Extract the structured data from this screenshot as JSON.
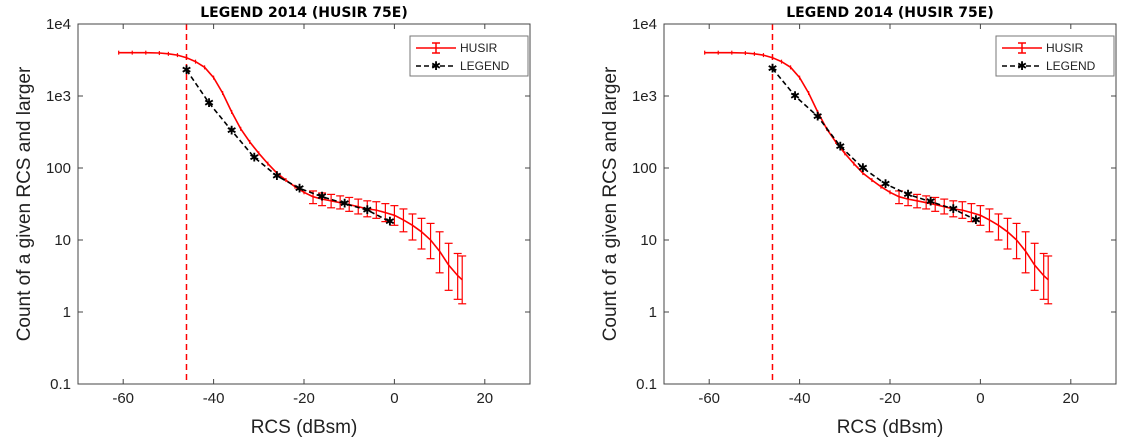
{
  "colors": {
    "husir": "#ff0000",
    "legend": "#000000",
    "cutoff": "#ff0000"
  },
  "chart_data": [
    {
      "type": "line",
      "title": "LEGEND  2014  (HUSIR 75E)",
      "xlabel": "RCS (dBsm)",
      "ylabel": "Count of a given RCS and larger",
      "xlim": [
        -70,
        30
      ],
      "ylim": [
        0.1,
        10000
      ],
      "yscale": "log",
      "xticks": [
        -60,
        -40,
        -20,
        0,
        20
      ],
      "xtick_labels": [
        "-60",
        "-40",
        "-20",
        "0",
        "20"
      ],
      "yticks": [
        0.1,
        1,
        10,
        100,
        1000,
        10000
      ],
      "ytick_labels": [
        "0.1",
        "1",
        "10",
        "100",
        "1e3",
        "1e4"
      ],
      "grid": false,
      "legend_position": "top-right",
      "vline_x": -46,
      "series": [
        {
          "name": "HUSIR",
          "style": "solid-errorbar",
          "x": [
            -61,
            -58,
            -55,
            -52,
            -50,
            -48,
            -46,
            -44,
            -42,
            -40,
            -38,
            -36,
            -34,
            -32,
            -30,
            -28,
            -26,
            -24,
            -22,
            -20,
            -18,
            -16,
            -14,
            -12,
            -10,
            -8,
            -6,
            -4,
            -2,
            0,
            2,
            4,
            6,
            8,
            10,
            12,
            14,
            15
          ],
          "y": [
            4000,
            4000,
            4000,
            3950,
            3850,
            3700,
            3400,
            3000,
            2500,
            1800,
            1100,
            600,
            350,
            230,
            160,
            115,
            85,
            68,
            55,
            46,
            40,
            37,
            35,
            33,
            31,
            29,
            27,
            26,
            24,
            22,
            19,
            16,
            13,
            10,
            7,
            4.5,
            3.2,
            2.8
          ],
          "yerr_lo": [
            4000,
            4000,
            4000,
            3950,
            3850,
            3700,
            3400,
            3000,
            2500,
            1800,
            1100,
            600,
            350,
            230,
            160,
            115,
            85,
            68,
            55,
            46,
            32,
            30,
            28,
            27,
            25,
            23,
            21,
            20,
            18,
            16,
            13,
            10,
            7.5,
            5.5,
            3.5,
            2,
            1.5,
            1.3
          ],
          "yerr_hi": [
            4000,
            4000,
            4000,
            3950,
            3850,
            3700,
            3400,
            3000,
            2500,
            1800,
            1100,
            600,
            350,
            230,
            160,
            115,
            85,
            68,
            55,
            46,
            48,
            45,
            43,
            41,
            39,
            37,
            35,
            34,
            32,
            30,
            27,
            23,
            20,
            17,
            13,
            9,
            6.5,
            6
          ]
        },
        {
          "name": "LEGEND",
          "style": "dashed-star",
          "x": [
            -46,
            -41,
            -36,
            -31,
            -26,
            -21,
            -16,
            -11,
            -6,
            -1
          ],
          "y": [
            2300,
            800,
            330,
            140,
            78,
            52,
            40,
            32,
            26,
            18
          ]
        }
      ]
    },
    {
      "type": "line",
      "title": "LEGEND  2014  (HUSIR 75E)",
      "xlabel": "RCS (dBsm)",
      "ylabel": "Count of a given RCS and larger",
      "xlim": [
        -70,
        30
      ],
      "ylim": [
        0.1,
        10000
      ],
      "yscale": "log",
      "xticks": [
        -60,
        -40,
        -20,
        0,
        20
      ],
      "xtick_labels": [
        "-60",
        "-40",
        "-20",
        "0",
        "20"
      ],
      "yticks": [
        0.1,
        1,
        10,
        100,
        1000,
        10000
      ],
      "ytick_labels": [
        "0.1",
        "1",
        "10",
        "100",
        "1e3",
        "1e4"
      ],
      "grid": false,
      "legend_position": "top-right",
      "vline_x": -46,
      "series": [
        {
          "name": "HUSIR",
          "style": "solid-errorbar",
          "x": [
            -61,
            -58,
            -55,
            -52,
            -50,
            -48,
            -46,
            -44,
            -42,
            -40,
            -38,
            -36,
            -34,
            -32,
            -30,
            -28,
            -26,
            -24,
            -22,
            -20,
            -18,
            -16,
            -14,
            -12,
            -10,
            -8,
            -6,
            -4,
            -2,
            0,
            2,
            4,
            6,
            8,
            10,
            12,
            14,
            15
          ],
          "y": [
            4000,
            4000,
            4000,
            3950,
            3850,
            3700,
            3400,
            3000,
            2500,
            1800,
            1100,
            600,
            350,
            230,
            160,
            115,
            85,
            68,
            55,
            46,
            40,
            37,
            35,
            33,
            31,
            29,
            27,
            26,
            24,
            22,
            19,
            16,
            13,
            10,
            7,
            4.5,
            3.2,
            2.8
          ],
          "yerr_lo": [
            4000,
            4000,
            4000,
            3950,
            3850,
            3700,
            3400,
            3000,
            2500,
            1800,
            1100,
            600,
            350,
            230,
            160,
            115,
            85,
            68,
            55,
            46,
            32,
            30,
            28,
            27,
            25,
            23,
            21,
            20,
            18,
            16,
            13,
            10,
            7.5,
            5.5,
            3.5,
            2,
            1.5,
            1.3
          ],
          "yerr_hi": [
            4000,
            4000,
            4000,
            3950,
            3850,
            3700,
            3400,
            3000,
            2500,
            1800,
            1100,
            600,
            350,
            230,
            160,
            115,
            85,
            68,
            55,
            46,
            48,
            45,
            43,
            41,
            39,
            37,
            35,
            34,
            32,
            30,
            27,
            23,
            20,
            17,
            13,
            9,
            6.5,
            6
          ]
        },
        {
          "name": "LEGEND",
          "style": "dashed-star",
          "x": [
            -46,
            -41,
            -36,
            -31,
            -26,
            -21,
            -16,
            -11,
            -6,
            -1
          ],
          "y": [
            2400,
            1000,
            520,
            200,
            100,
            60,
            43,
            34,
            27,
            19
          ]
        }
      ]
    }
  ]
}
